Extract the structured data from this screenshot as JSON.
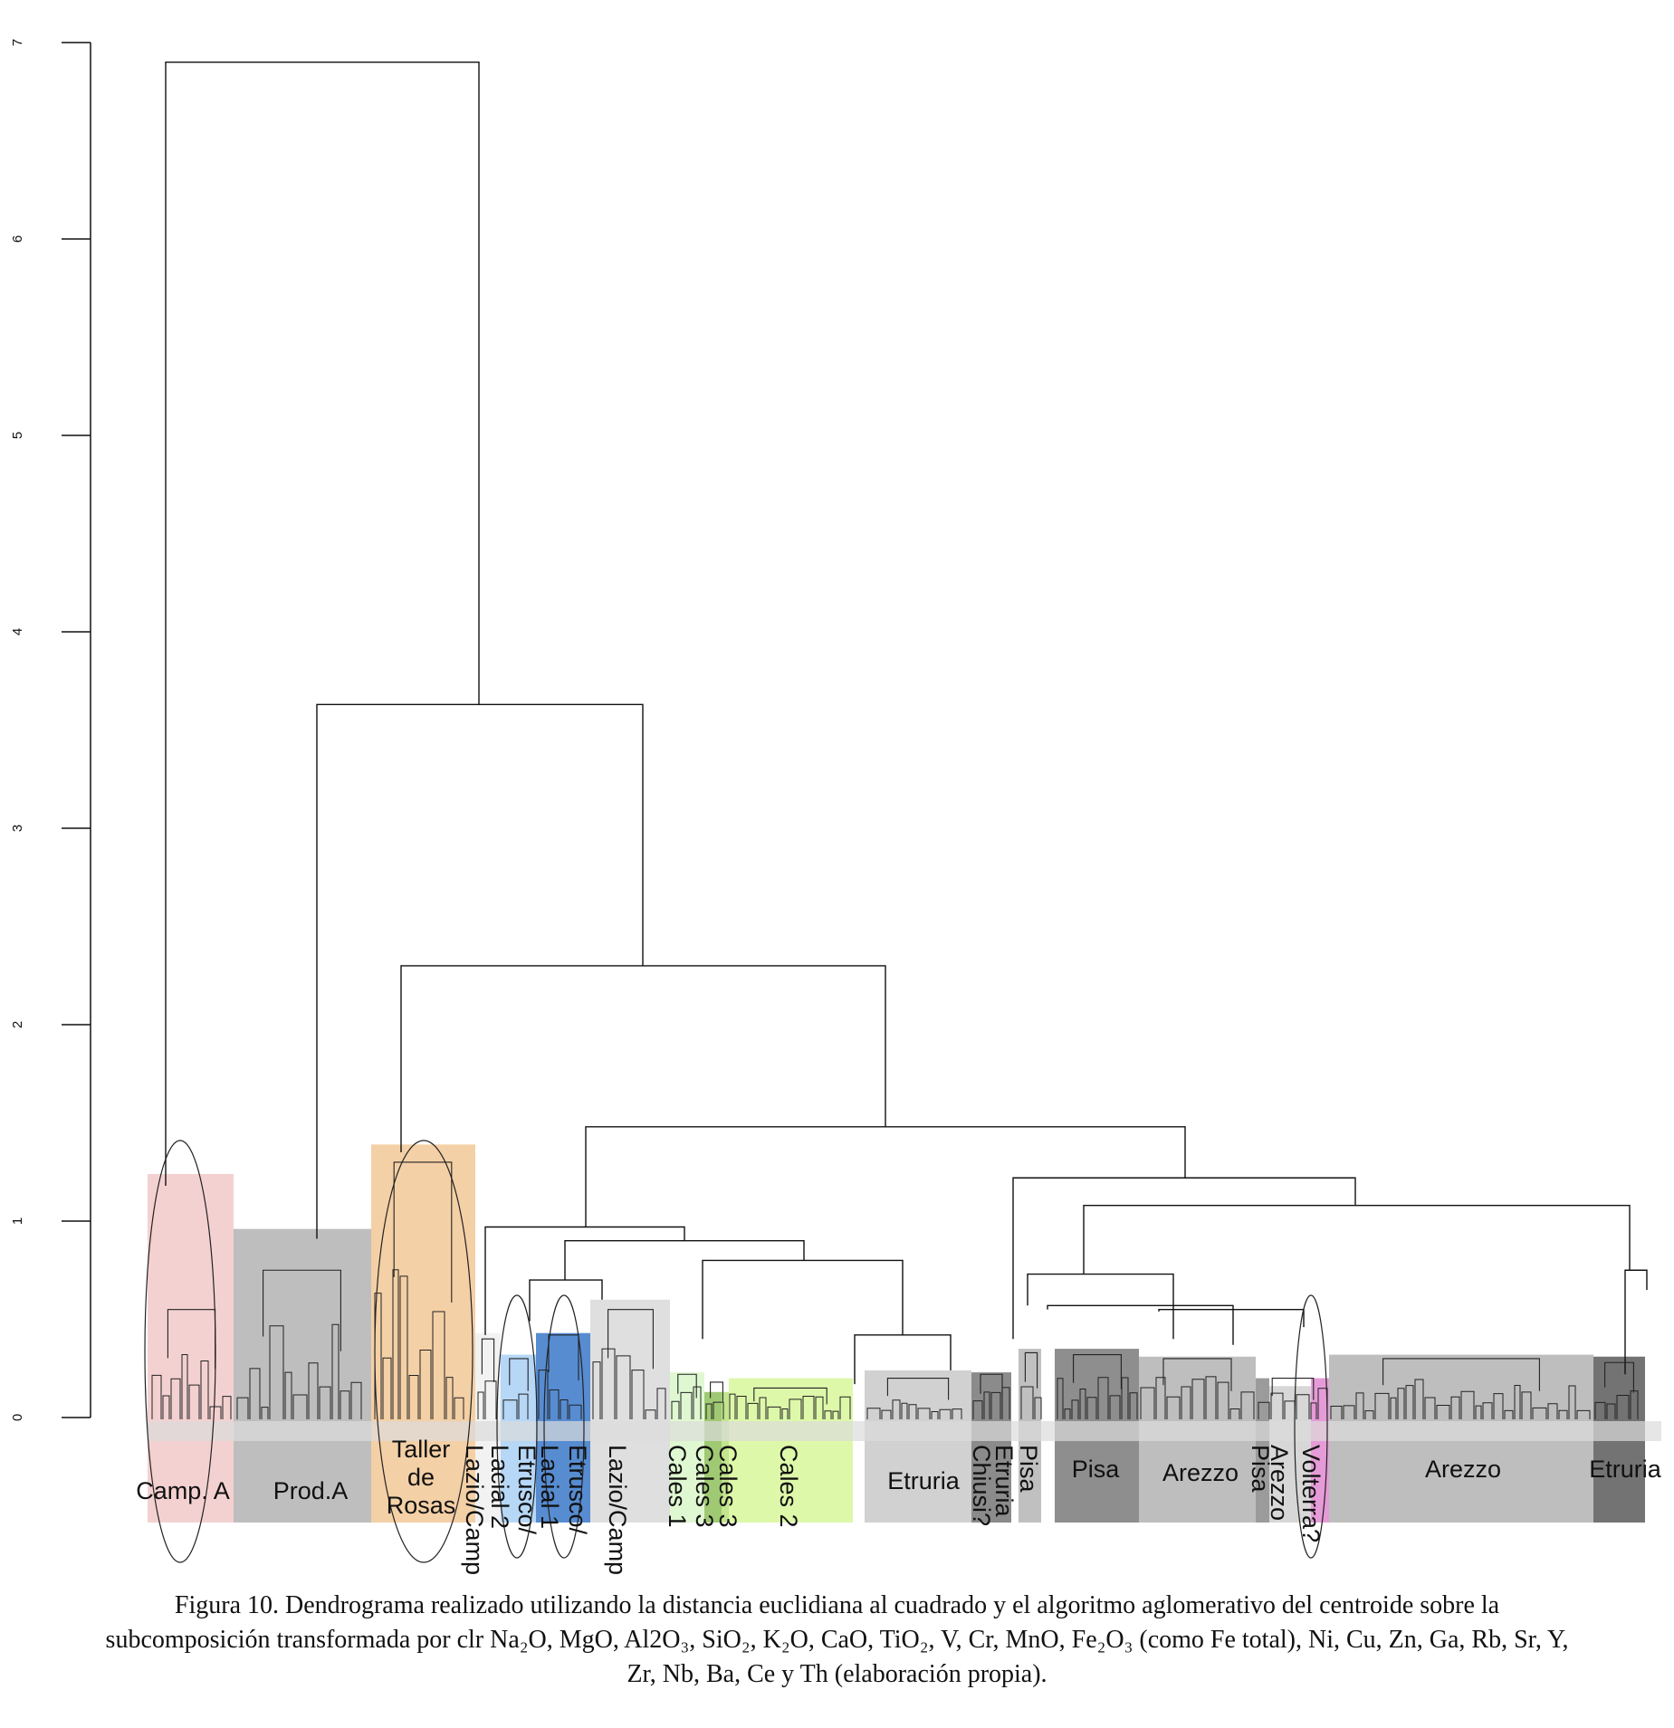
{
  "chart_data": {
    "type": "dendrogram",
    "ylim": [
      0,
      7
    ],
    "yticks": [
      "0",
      "1",
      "2",
      "3",
      "4",
      "5",
      "6",
      "7"
    ],
    "merges": [
      {
        "height": 6.9,
        "left": "Camp. A",
        "right": "rest"
      },
      {
        "height": 3.63,
        "left": "Prod.A",
        "right": "rest"
      },
      {
        "height": 2.3,
        "left": "Taller de Rosas",
        "right": "rest"
      },
      {
        "height": 1.48,
        "left": "Lazio / Etrusco / Cales",
        "right": "Etruria / Pisa / Arezzo / Volterra"
      },
      {
        "height": 1.22,
        "left": "Chiusi / Pisa",
        "right": "Pisa / Arezzo / Volterra / Etruria"
      },
      {
        "height": 1.08,
        "left": "Pisa / Arezzo / Volterra",
        "right": "Etruria"
      },
      {
        "height": 0.97,
        "left": "Lazio/Camp",
        "right": "Lacial / Etrusco / Cales / Etruria"
      },
      {
        "height": 0.9,
        "left": "Lacial / Etrusco",
        "right": "Cales / Etruria"
      },
      {
        "height": 0.8,
        "left": "Cales 1, Cales 3, Cales 2",
        "right": "Etruria, Chiusi?"
      }
    ],
    "groups": [
      {
        "label": "Camp. A",
        "color": "#f2c9c9"
      },
      {
        "label": "Prod.A",
        "color": "#b3b3b3"
      },
      {
        "label": "Taller de Rosas",
        "color": "#f2c896"
      },
      {
        "label": "Lazio/Camp",
        "color": "#f0f0f0"
      },
      {
        "label": "Lacial 2",
        "color": "#a9d0f5"
      },
      {
        "label": "Etrusco/",
        "color": "#a9d0f5"
      },
      {
        "label": "Lacial 1",
        "color": "#3a78c9"
      },
      {
        "label": "Etrusco/",
        "color": "#3a78c9"
      },
      {
        "label": "Lazio/Camp",
        "color": "#d9d9d9"
      },
      {
        "label": "Cales 1",
        "color": "#d9f7c9"
      },
      {
        "label": "Cales 3",
        "color": "#8fbf5a"
      },
      {
        "label": "Cales 3",
        "color": "#b9e07a"
      },
      {
        "label": "Cales 2",
        "color": "#d7f79a"
      },
      {
        "label": "Etruria",
        "color": "#c9c9c9"
      },
      {
        "label": "Etruria Chiusi?",
        "color": "#777777"
      },
      {
        "label": "Pisa",
        "color": "#b5b5b5"
      },
      {
        "label": "Pisa",
        "color": "#7a7a7a"
      },
      {
        "label": "Arezzo",
        "color": "#b3b3b3"
      },
      {
        "label": "Pisa",
        "color": "#8a8a8a"
      },
      {
        "label": "Arezzo",
        "color": "#d0d0d0"
      },
      {
        "label": "Volterra?",
        "color": "#e08ad0"
      },
      {
        "label": "Arezzo",
        "color": "#b3b3b3"
      },
      {
        "label": "Etruria",
        "color": "#5a5a5a"
      }
    ]
  },
  "caption": {
    "line1": "Figura 10. Dendrograma realizado utilizando la distancia euclidiana al cuadrado y el algoritmo aglomerativo del centroide sobre la",
    "line2": "subcomposición transformada por clr Na₂O, MgO, Al2O₃, SiO₂, K₂O, CaO, TiO₂, V, Cr, MnO, Fe₂O₃ (como Fe total), Ni, Cu, Zn, Ga, Rb, Sr, Y,",
    "line3": "Zr, Nb, Ba, Ce y Th (elaboración propia)."
  }
}
